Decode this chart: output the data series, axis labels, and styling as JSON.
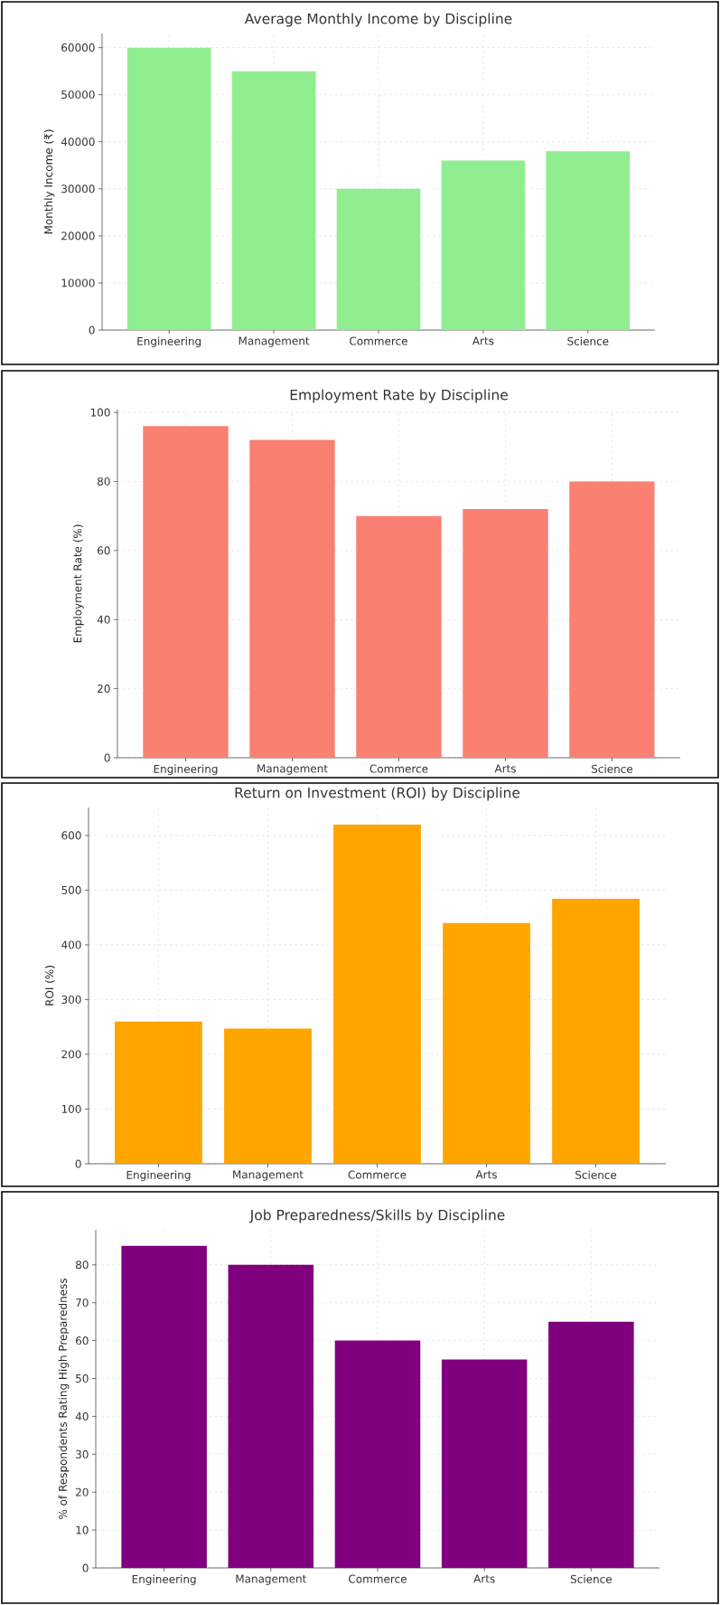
{
  "chart_data": [
    {
      "type": "bar",
      "title": "Average Monthly Income by Discipline",
      "ylabel": "Monthly Income (₹)",
      "categories": [
        "Engineering",
        "Management",
        "Commerce",
        "Arts",
        "Science"
      ],
      "values": [
        60000,
        55000,
        30000,
        36000,
        38000
      ],
      "color": "#90ee90",
      "ylim": [
        0,
        63000
      ],
      "yticks": [
        0,
        10000,
        20000,
        30000,
        40000,
        50000,
        60000
      ],
      "grid": true
    },
    {
      "type": "bar",
      "title": "Employment Rate by Discipline",
      "ylabel": "Employment Rate (%)",
      "categories": [
        "Engineering",
        "Management",
        "Commerce",
        "Arts",
        "Science"
      ],
      "values": [
        96,
        92,
        70,
        72,
        80
      ],
      "color": "#fa8072",
      "ylim": [
        0,
        100.8
      ],
      "yticks": [
        0,
        20,
        40,
        60,
        80,
        100
      ],
      "grid": true
    },
    {
      "type": "bar",
      "title": "Return on Investment (ROI) by Discipline",
      "ylabel": "ROI (%)",
      "categories": [
        "Engineering",
        "Management",
        "Commerce",
        "Arts",
        "Science"
      ],
      "values": [
        260,
        247,
        620,
        440,
        484
      ],
      "color": "#ffa500",
      "ylim": [
        0,
        651
      ],
      "yticks": [
        0,
        100,
        200,
        300,
        400,
        500,
        600
      ],
      "grid": true
    },
    {
      "type": "bar",
      "title": "Job Preparedness/Skills by Discipline",
      "ylabel": "% of Respondents Rating High Preparedness",
      "categories": [
        "Engineering",
        "Management",
        "Commerce",
        "Arts",
        "Science"
      ],
      "values": [
        85,
        80,
        60,
        55,
        65
      ],
      "color": "#800080",
      "ylim": [
        0,
        89.25
      ],
      "yticks": [
        0,
        10,
        20,
        30,
        40,
        50,
        60,
        70,
        80
      ],
      "grid": true
    }
  ]
}
